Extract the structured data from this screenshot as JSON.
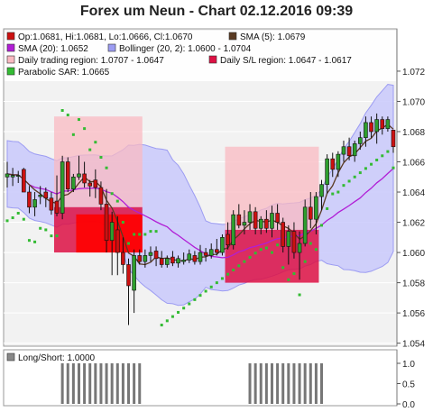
{
  "chart_data": {
    "type": "candlestick",
    "title": "Forex um Neun - Chart 02.12.2016 09:39",
    "colors": {
      "bull": "#2e9e2e",
      "bear": "#cc1111",
      "sma5": "#5a3a22",
      "sma20": "#b11ed6",
      "bollinger_fill": "#c9c9fb",
      "bollinger_edge": "#9c9cf2",
      "trading_region": "#f9b9c1",
      "sl_region": "#dd1144",
      "sl_region_core": "#ff0000",
      "sar": "#33bb33",
      "long_short": "#777777",
      "panel_bg": "#f2f2f2"
    },
    "legend": [
      {
        "key": "ohlc",
        "icon_color": "#cc1111",
        "text": "Op:1.0681, Hi:1.0681, Lo:1.0666, Cl:1.0670"
      },
      {
        "key": "sma5",
        "icon_color": "#5a3a22",
        "text": "SMA (5): 1.0679"
      },
      {
        "key": "sma20",
        "icon_color": "#b11ed6",
        "text": "SMA (20): 1.0652"
      },
      {
        "key": "bollinger",
        "icon_color": "#9c9cf2",
        "text": "Bollinger (20, 2): 1.0600 - 1.0704"
      },
      {
        "key": "trading_region",
        "icon_color": "#f9b9c1",
        "text": "Daily trading region: 1.0707 - 1.0647"
      },
      {
        "key": "sl_region",
        "icon_color": "#dd1144",
        "text": "Daily S/L region: 1.0647 - 1.0617"
      },
      {
        "key": "sar",
        "icon_color": "#33bb33",
        "text": "Parabolic SAR: 1.0665"
      }
    ],
    "y_axis": {
      "min": 1.0538,
      "max": 1.0748,
      "ticks": [
        "1.054",
        "1.056",
        "1.058",
        "1.060",
        "1.062",
        "1.064",
        "1.066",
        "1.068",
        "1.070",
        "1.072"
      ]
    },
    "trading_regions": [
      {
        "from_bar": 9,
        "to_bar": 24,
        "high": 1.069,
        "low": 1.063,
        "sl_low": 1.06
      },
      {
        "from_bar": 40,
        "to_bar": 56,
        "high": 1.067,
        "low": 1.0615,
        "sl_low": 1.058
      }
    ],
    "candles": [
      [
        1.065,
        1.066,
        1.0643,
        1.0652
      ],
      [
        1.065,
        1.0656,
        1.0644,
        1.0651
      ],
      [
        1.0651,
        1.0654,
        1.0646,
        1.0651
      ],
      [
        1.0655,
        1.0656,
        1.0641,
        1.064
      ],
      [
        1.064,
        1.0644,
        1.0626,
        1.063
      ],
      [
        1.063,
        1.064,
        1.0624,
        1.0635
      ],
      [
        1.0637,
        1.0644,
        1.0632,
        1.0638
      ],
      [
        1.064,
        1.0643,
        1.063,
        1.0636
      ],
      [
        1.0636,
        1.064,
        1.0625,
        1.0628
      ],
      [
        1.0634,
        1.0651,
        1.0624,
        1.0626
      ],
      [
        1.0626,
        1.0664,
        1.0622,
        1.066
      ],
      [
        1.066,
        1.0663,
        1.064,
        1.0642
      ],
      [
        1.0642,
        1.0652,
        1.064,
        1.065
      ],
      [
        1.065,
        1.0664,
        1.0648,
        1.0652
      ],
      [
        1.0652,
        1.066,
        1.0643,
        1.0646
      ],
      [
        1.0646,
        1.0648,
        1.0637,
        1.0644
      ],
      [
        1.0648,
        1.0655,
        1.0636,
        1.0643
      ],
      [
        1.0643,
        1.0647,
        1.0628,
        1.0632
      ],
      [
        1.0632,
        1.0642,
        1.06,
        1.0608
      ],
      [
        1.0608,
        1.0627,
        1.0585,
        1.062
      ],
      [
        1.0615,
        1.0624,
        1.0585,
        1.06
      ],
      [
        1.06,
        1.061,
        1.0586,
        1.0592
      ],
      [
        1.0592,
        1.0596,
        1.0552,
        1.0578
      ],
      [
        1.0575,
        1.0602,
        1.056,
        1.0598
      ],
      [
        1.0598,
        1.0602,
        1.0592,
        1.0594
      ],
      [
        1.0594,
        1.0602,
        1.059,
        1.0598
      ],
      [
        1.0598,
        1.0604,
        1.0594,
        1.06
      ],
      [
        1.0601,
        1.0604,
        1.0591,
        1.0596
      ],
      [
        1.0596,
        1.0601,
        1.059,
        1.0592
      ],
      [
        1.0592,
        1.0598,
        1.059,
        1.0596
      ],
      [
        1.0597,
        1.0601,
        1.0591,
        1.0593
      ],
      [
        1.0593,
        1.0598,
        1.059,
        1.0596
      ],
      [
        1.0594,
        1.06,
        1.0592,
        1.0595
      ],
      [
        1.0595,
        1.0602,
        1.0593,
        1.0599
      ],
      [
        1.0598,
        1.0601,
        1.0592,
        1.0594
      ],
      [
        1.0594,
        1.0605,
        1.0592,
        1.06
      ],
      [
        1.06,
        1.0603,
        1.0594,
        1.0598
      ],
      [
        1.0598,
        1.0606,
        1.0596,
        1.0602
      ],
      [
        1.0602,
        1.0609,
        1.0598,
        1.06
      ],
      [
        1.06,
        1.0612,
        1.0598,
        1.061
      ],
      [
        1.0612,
        1.062,
        1.0602,
        1.0605
      ],
      [
        1.0605,
        1.0628,
        1.0602,
        1.0625
      ],
      [
        1.0625,
        1.0632,
        1.0616,
        1.0618
      ],
      [
        1.0618,
        1.0628,
        1.0612,
        1.062
      ],
      [
        1.062,
        1.0632,
        1.0615,
        1.0627
      ],
      [
        1.0627,
        1.063,
        1.0612,
        1.0616
      ],
      [
        1.0616,
        1.0624,
        1.0612,
        1.0622
      ],
      [
        1.0622,
        1.0628,
        1.0613,
        1.0616
      ],
      [
        1.0616,
        1.0631,
        1.061,
        1.0626
      ],
      [
        1.0626,
        1.0632,
        1.0615,
        1.062
      ],
      [
        1.062,
        1.0623,
        1.06,
        1.0604
      ],
      [
        1.0604,
        1.0618,
        1.0592,
        1.0614
      ],
      [
        1.0614,
        1.062,
        1.0596,
        1.06
      ],
      [
        1.06,
        1.0614,
        1.0582,
        1.0606
      ],
      [
        1.0606,
        1.0635,
        1.0604,
        1.063
      ],
      [
        1.063,
        1.064,
        1.0616,
        1.0622
      ],
      [
        1.0622,
        1.064,
        1.0612,
        1.0637
      ],
      [
        1.0637,
        1.0648,
        1.0628,
        1.0645
      ],
      [
        1.0645,
        1.0665,
        1.0639,
        1.0662
      ],
      [
        1.0662,
        1.0666,
        1.065,
        1.0655
      ],
      [
        1.0655,
        1.0667,
        1.065,
        1.0665
      ],
      [
        1.0665,
        1.0674,
        1.066,
        1.067
      ],
      [
        1.067,
        1.0676,
        1.0661,
        1.0664
      ],
      [
        1.0664,
        1.0674,
        1.066,
        1.0672
      ],
      [
        1.0672,
        1.068,
        1.0668,
        1.0676
      ],
      [
        1.0676,
        1.069,
        1.067,
        1.0686
      ],
      [
        1.0686,
        1.069,
        1.0676,
        1.068
      ],
      [
        1.068,
        1.0692,
        1.0672,
        1.0688
      ],
      [
        1.0688,
        1.069,
        1.0678,
        1.0682
      ],
      [
        1.0682,
        1.069,
        1.068,
        1.0688
      ],
      [
        1.0681,
        1.0681,
        1.0666,
        1.067
      ]
    ],
    "long_short": {
      "label": "Long/Short: 1.0000",
      "y_ticks": [
        "0.0",
        "0.5",
        "1.0"
      ],
      "bars": [
        [
          10,
          24
        ],
        [
          44,
          57
        ]
      ]
    }
  }
}
